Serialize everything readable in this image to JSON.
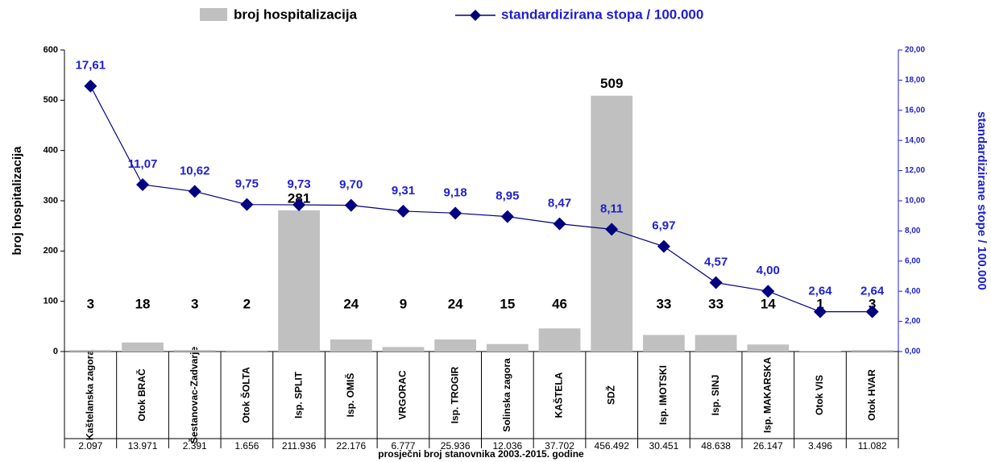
{
  "chart_data": {
    "type": "bar-line",
    "legend_bar": "broj hospitalizacija",
    "legend_line": "standardizirana stopa / 100.000",
    "y_label": "broj hospitalizacija",
    "y2_label": "standardizirane stope / 100.000",
    "x_label": "prosječni broj stanovnika 2003.-2015. godine",
    "categories": [
      "Kaštelanska zagora",
      "Otok BRAČ",
      "Šestanovac-Zadvarje",
      "Otok ŠOLTA",
      "Isp. SPLIT",
      "Isp. OMIŠ",
      "VRGORAC",
      "Isp. TROGIR",
      "Solinska zagora",
      "KAŠTELA",
      "SDŽ",
      "Isp. IMOTSKI",
      "Isp. SINJ",
      "Isp. MAKARSKA",
      "Otok VIS",
      "Otok HVAR"
    ],
    "populations": [
      "2.097",
      "13.971",
      "2.391",
      "1.656",
      "211.936",
      "22.176",
      "6.777",
      "25.936",
      "12.036",
      "37.702",
      "456.492",
      "30.451",
      "48.638",
      "26.147",
      "3.496",
      "11.082"
    ],
    "series": [
      {
        "name": "broj hospitalizacija",
        "color": "#c0c0c0",
        "values": [
          3,
          18,
          3,
          2,
          281,
          24,
          9,
          24,
          15,
          46,
          509,
          33,
          33,
          14,
          1,
          3
        ]
      },
      {
        "name": "standardizirana stopa / 100.000",
        "color": "#000080",
        "axis": "y2",
        "values": [
          17.61,
          11.07,
          10.62,
          9.75,
          9.73,
          9.7,
          9.31,
          9.18,
          8.95,
          8.47,
          8.11,
          6.97,
          4.57,
          4.0,
          2.64,
          2.64
        ],
        "value_labels": [
          "17,61",
          "11,07",
          "10,62",
          "9,75",
          "9,73",
          "9,70",
          "9,31",
          "9,18",
          "8,95",
          "8,47",
          "8,11",
          "6,97",
          "4,57",
          "4,00",
          "2,64",
          "2,64"
        ]
      }
    ],
    "ylim": [
      0,
      600
    ],
    "yticks": [
      0,
      100,
      200,
      300,
      400,
      500,
      600
    ],
    "y2lim": [
      0,
      20
    ],
    "y2ticks": [
      {
        "value": 0,
        "label": "0,00"
      },
      {
        "value": 2,
        "label": "2,00"
      },
      {
        "value": 4,
        "label": "4,00"
      },
      {
        "value": 6,
        "label": "6,00"
      },
      {
        "value": 8,
        "label": "8,00"
      },
      {
        "value": 10,
        "label": "10,00"
      },
      {
        "value": 12,
        "label": "12,00"
      },
      {
        "value": 14,
        "label": "14,00"
      },
      {
        "value": 16,
        "label": "16,00"
      },
      {
        "value": 18,
        "label": "18,00"
      },
      {
        "value": 20,
        "label": "20,00"
      }
    ]
  }
}
